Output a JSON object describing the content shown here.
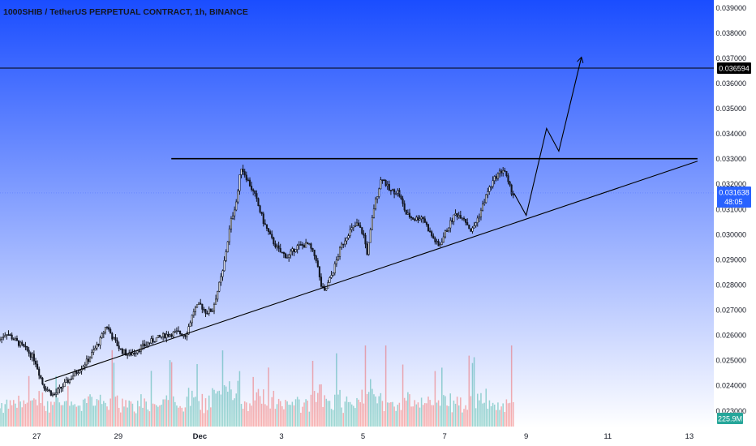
{
  "chart_data": {
    "type": "candlestick",
    "title": "1000SHIB / TetherUS PERPETUAL CONTRACT, 1h, BINANCE",
    "colors": {
      "bg_top": "#1a4dff",
      "bg_bottom": "#ffffff",
      "up": "#26a69a",
      "down": "#ef5350",
      "candle": "#131722",
      "line": "#000000",
      "current_label": "#2962ff",
      "volume_label": "#26a69a",
      "tag_bg": "#000000"
    },
    "y_axis": {
      "range": [
        0.0223,
        0.0393
      ],
      "ticks": [
        "0.039000",
        "0.038000",
        "0.037000",
        "0.036000",
        "0.035000",
        "0.034000",
        "0.033000",
        "0.032000",
        "0.031000",
        "0.030000",
        "0.029000",
        "0.028000",
        "0.027000",
        "0.026000",
        "0.025000",
        "0.024000",
        "0.023000"
      ]
    },
    "x_axis": {
      "range_days": [
        26.1,
        43.6
      ],
      "ticks": [
        {
          "d": 27,
          "label": "27"
        },
        {
          "d": 29,
          "label": "29"
        },
        {
          "d": 31,
          "label": "Dec"
        },
        {
          "d": 33,
          "label": "3"
        },
        {
          "d": 35,
          "label": "5"
        },
        {
          "d": 37,
          "label": "7"
        },
        {
          "d": 39,
          "label": "9"
        },
        {
          "d": 41,
          "label": "11"
        },
        {
          "d": 43,
          "label": "13"
        }
      ]
    },
    "price_path": [
      [
        26.0,
        0.0256
      ],
      [
        26.3,
        0.0261
      ],
      [
        26.5,
        0.0258
      ],
      [
        26.8,
        0.0254
      ],
      [
        27.0,
        0.025
      ],
      [
        27.2,
        0.024
      ],
      [
        27.45,
        0.0236
      ],
      [
        27.7,
        0.024
      ],
      [
        28.0,
        0.0245
      ],
      [
        28.3,
        0.025
      ],
      [
        28.6,
        0.0258
      ],
      [
        28.75,
        0.0264
      ],
      [
        28.9,
        0.0259
      ],
      [
        29.1,
        0.0254
      ],
      [
        29.3,
        0.0252
      ],
      [
        29.6,
        0.0255
      ],
      [
        29.9,
        0.0258
      ],
      [
        30.2,
        0.026
      ],
      [
        30.5,
        0.0261
      ],
      [
        30.7,
        0.026
      ],
      [
        30.9,
        0.027
      ],
      [
        31.05,
        0.0272
      ],
      [
        31.2,
        0.0269
      ],
      [
        31.35,
        0.027
      ],
      [
        31.6,
        0.0285
      ],
      [
        31.8,
        0.0305
      ],
      [
        31.95,
        0.0314
      ],
      [
        32.05,
        0.0327
      ],
      [
        32.2,
        0.0322
      ],
      [
        32.4,
        0.0315
      ],
      [
        32.6,
        0.0305
      ],
      [
        32.8,
        0.0298
      ],
      [
        33.0,
        0.0293
      ],
      [
        33.2,
        0.0291
      ],
      [
        33.4,
        0.0295
      ],
      [
        33.7,
        0.0296
      ],
      [
        33.9,
        0.029
      ],
      [
        34.0,
        0.028
      ],
      [
        34.1,
        0.0277
      ],
      [
        34.3,
        0.0285
      ],
      [
        34.5,
        0.0295
      ],
      [
        34.7,
        0.0301
      ],
      [
        34.9,
        0.0304
      ],
      [
        35.05,
        0.03
      ],
      [
        35.15,
        0.0292
      ],
      [
        35.3,
        0.031
      ],
      [
        35.5,
        0.0323
      ],
      [
        35.7,
        0.0317
      ],
      [
        35.9,
        0.0317
      ],
      [
        36.1,
        0.0308
      ],
      [
        36.3,
        0.0306
      ],
      [
        36.5,
        0.0307
      ],
      [
        36.7,
        0.03
      ],
      [
        36.9,
        0.0295
      ],
      [
        37.1,
        0.0302
      ],
      [
        37.3,
        0.0308
      ],
      [
        37.5,
        0.0307
      ],
      [
        37.7,
        0.0301
      ],
      [
        37.9,
        0.0308
      ],
      [
        38.1,
        0.0317
      ],
      [
        38.3,
        0.0323
      ],
      [
        38.5,
        0.0326
      ],
      [
        38.6,
        0.032
      ],
      [
        38.7,
        0.03163
      ]
    ],
    "volume": {
      "label": "225.9M",
      "max_label_value": 225.9
    },
    "horizontal_level": {
      "value": 0.036594,
      "label": "0.036594"
    },
    "resistance": {
      "value": 0.033,
      "from_day": 30.3,
      "to_day": 43.2
    },
    "trendline": {
      "from": [
        27.2,
        0.02415
      ],
      "to": [
        43.2,
        0.0329
      ]
    },
    "projection": [
      [
        38.7,
        0.03163
      ],
      [
        39.0,
        0.03075
      ],
      [
        39.5,
        0.0342
      ],
      [
        39.8,
        0.0333
      ],
      [
        40.35,
        0.037
      ]
    ],
    "current_price": {
      "value": 0.031638,
      "label": "0.031638",
      "countdown": "48:05"
    }
  }
}
